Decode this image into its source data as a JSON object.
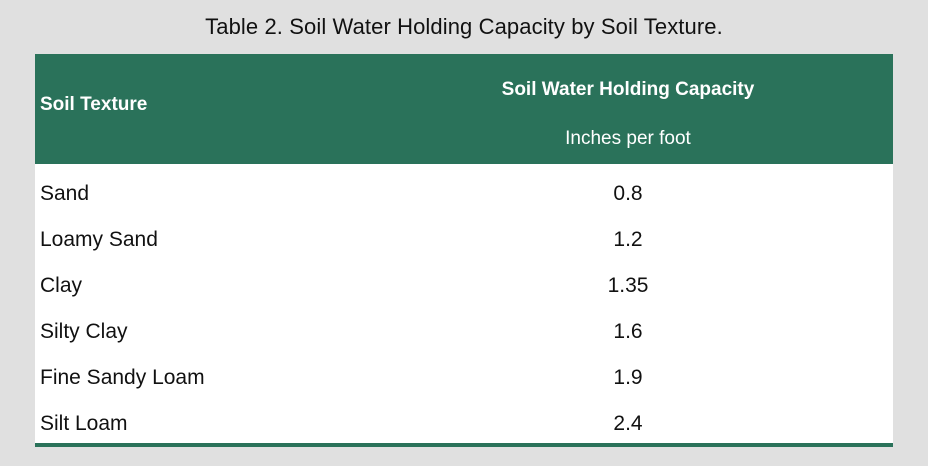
{
  "caption": "Table 2. Soil Water Holding Capacity by Soil Texture.",
  "header": {
    "col1": "Soil Texture",
    "col2": "Soil Water Holding Capacity",
    "col2_sub": "Inches per foot"
  },
  "rows": [
    {
      "texture": "Sand",
      "capacity": "0.8"
    },
    {
      "texture": "Loamy Sand",
      "capacity": "1.2"
    },
    {
      "texture": "Clay",
      "capacity": "1.35"
    },
    {
      "texture": "Silty Clay",
      "capacity": "1.6"
    },
    {
      "texture": "Fine Sandy Loam",
      "capacity": "1.9"
    },
    {
      "texture": "Silt Loam",
      "capacity": "2.4"
    }
  ],
  "colors": {
    "header_bg": "#2a725a",
    "rule": "#2a725a",
    "page_bg": "#e0e0e0"
  }
}
